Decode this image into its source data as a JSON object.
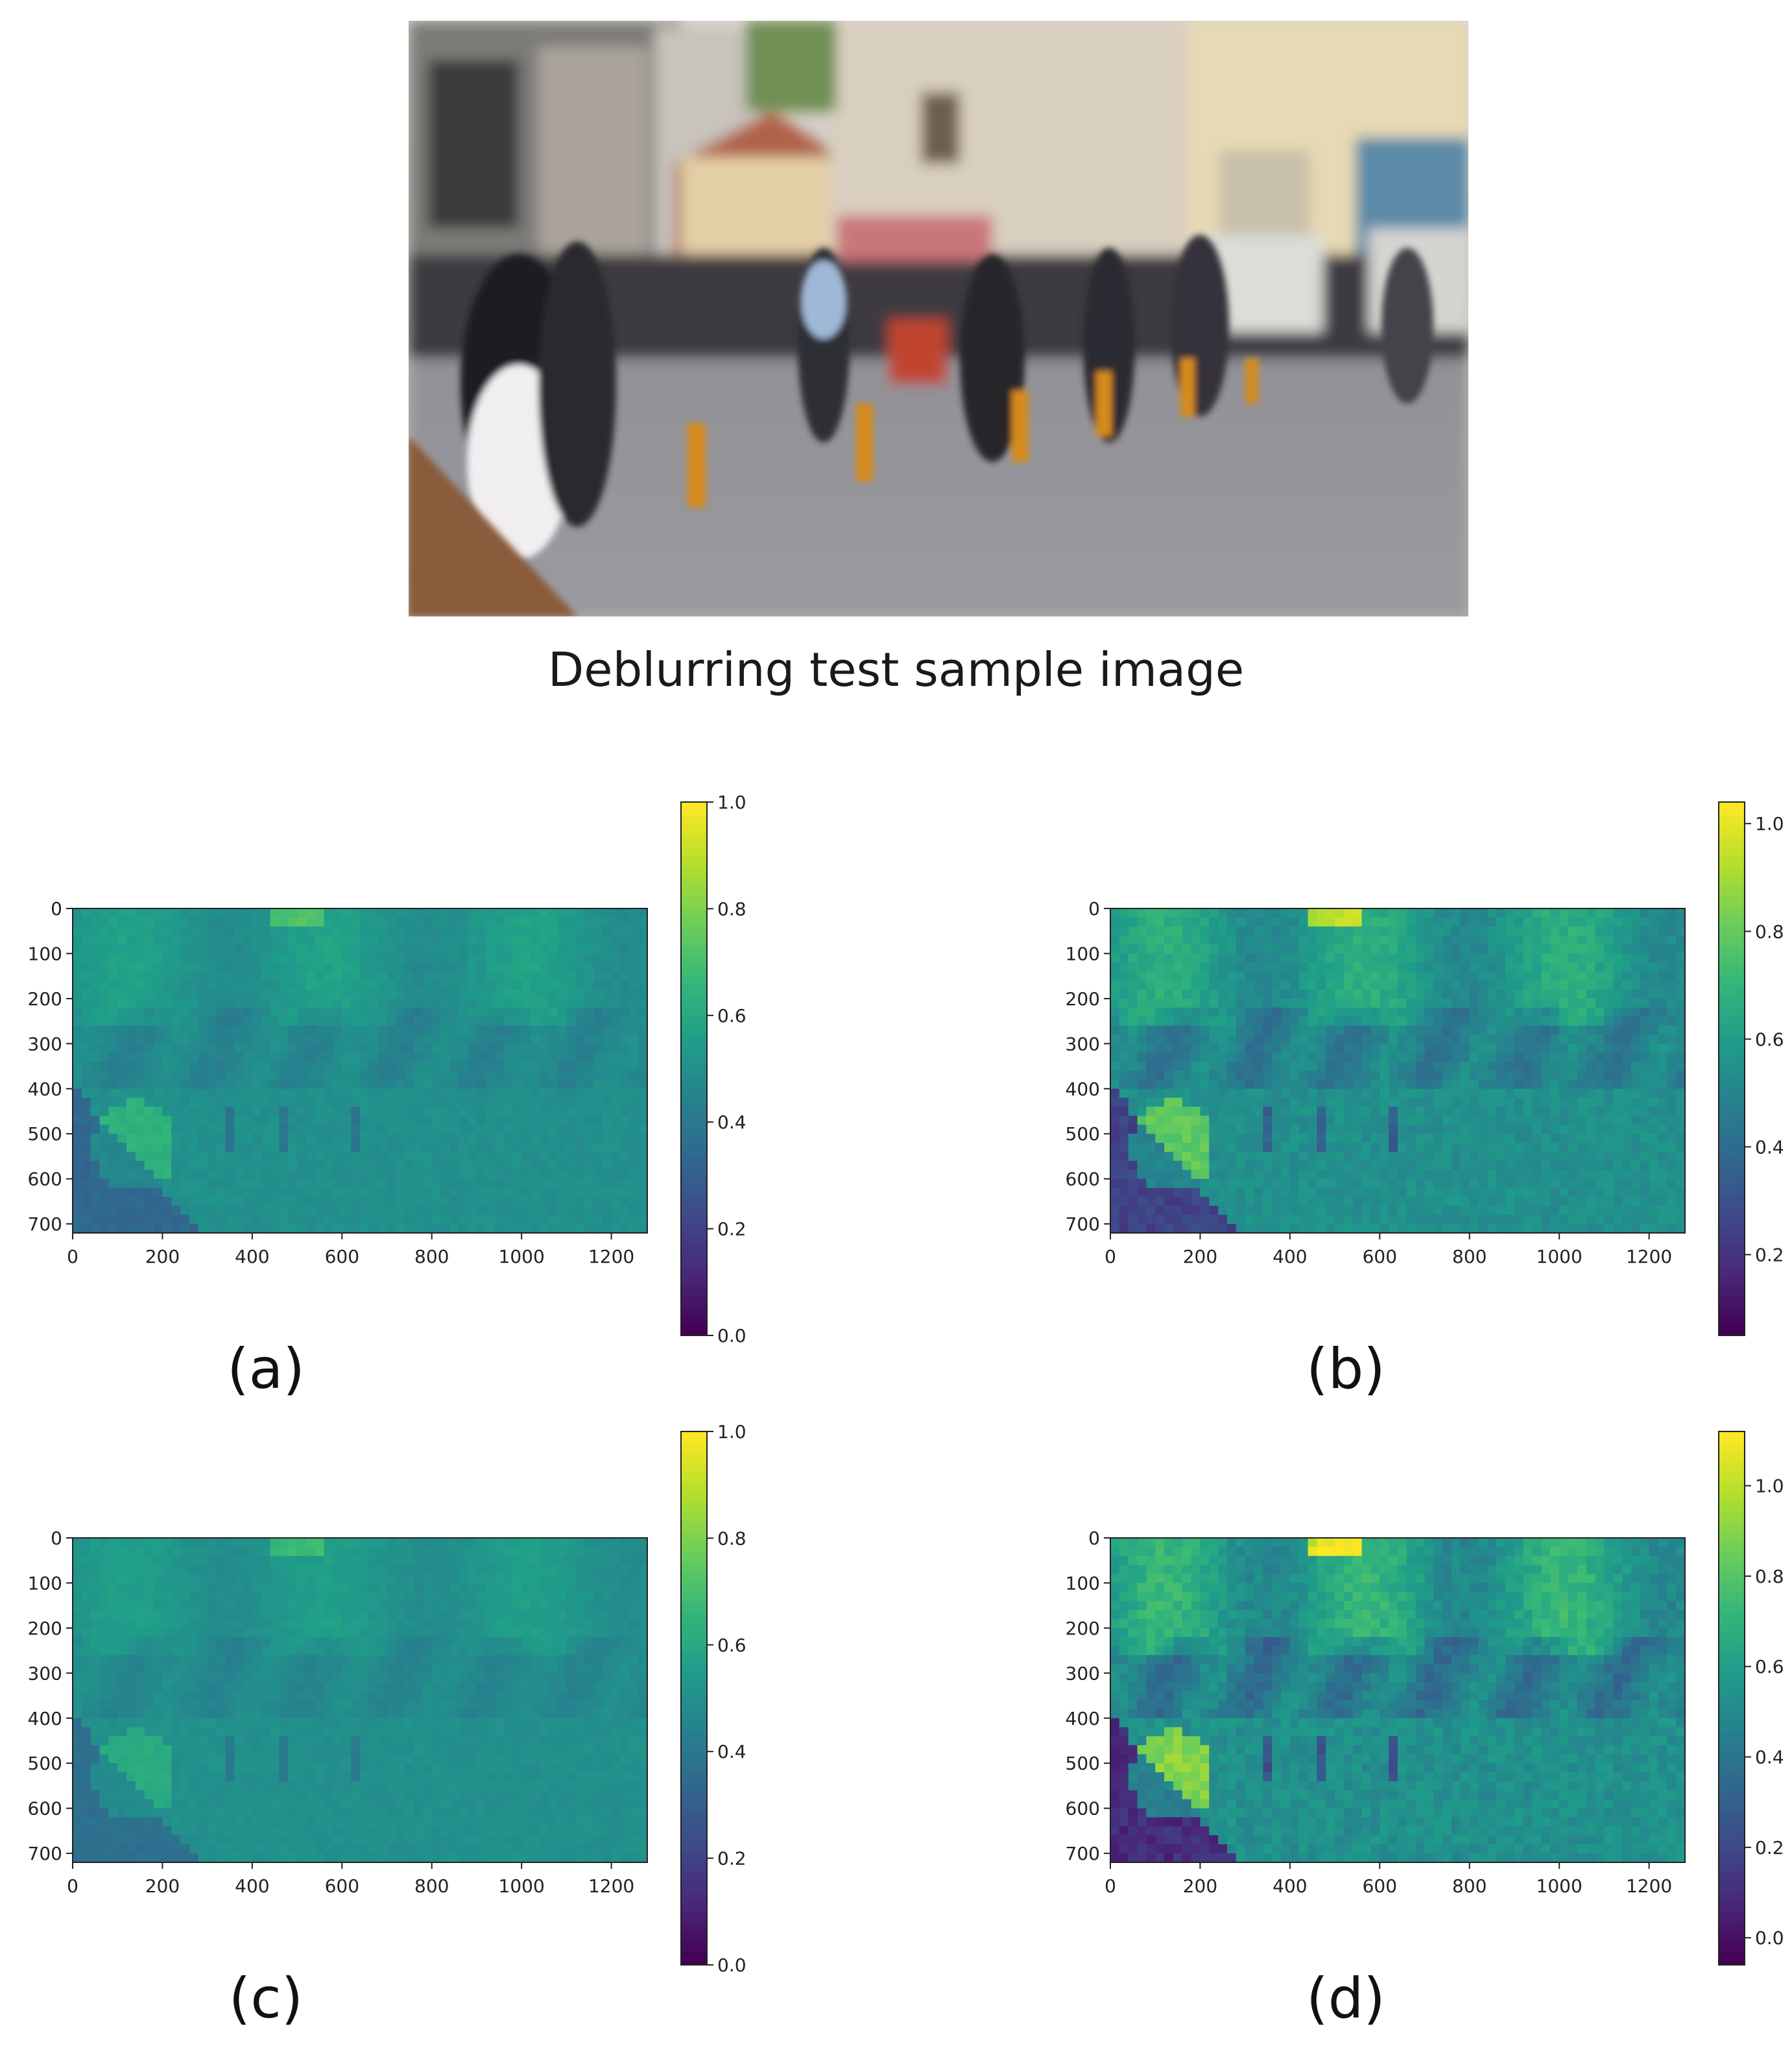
{
  "caption": "Deblurring test sample image",
  "colors": {
    "viridis_low": "#440154",
    "viridis_mid": "#21918c",
    "viridis_high": "#fde725"
  },
  "chart_data": [
    {
      "type": "heatmap",
      "panel_label": "(a)",
      "x_ticks": [
        0,
        200,
        400,
        600,
        800,
        1000,
        1200
      ],
      "y_ticks": [
        0,
        100,
        200,
        300,
        400,
        500,
        600,
        700
      ],
      "xlim": [
        0,
        1280
      ],
      "ylim": [
        720,
        0
      ],
      "colorbar": {
        "ticks": [
          "0.0",
          "0.2",
          "0.4",
          "0.6",
          "0.8",
          "1.0"
        ],
        "vmin": 0.0,
        "vmax": 1.0
      },
      "colormap": "viridis"
    },
    {
      "type": "heatmap",
      "panel_label": "(b)",
      "x_ticks": [
        0,
        200,
        400,
        600,
        800,
        1000,
        1200
      ],
      "y_ticks": [
        0,
        100,
        200,
        300,
        400,
        500,
        600,
        700
      ],
      "xlim": [
        0,
        1280
      ],
      "ylim": [
        720,
        0
      ],
      "colorbar": {
        "ticks": [
          "0.2",
          "0.4",
          "0.6",
          "0.8",
          "1.0"
        ],
        "vmin": 0.05,
        "vmax": 1.04
      },
      "colormap": "viridis"
    },
    {
      "type": "heatmap",
      "panel_label": "(c)",
      "x_ticks": [
        0,
        200,
        400,
        600,
        800,
        1000,
        1200
      ],
      "y_ticks": [
        0,
        100,
        200,
        300,
        400,
        500,
        600,
        700
      ],
      "xlim": [
        0,
        1280
      ],
      "ylim": [
        720,
        0
      ],
      "colorbar": {
        "ticks": [
          "0.0",
          "0.2",
          "0.4",
          "0.6",
          "0.8",
          "1.0"
        ],
        "vmin": 0.0,
        "vmax": 1.0
      },
      "colormap": "viridis"
    },
    {
      "type": "heatmap",
      "panel_label": "(d)",
      "x_ticks": [
        0,
        200,
        400,
        600,
        800,
        1000,
        1200
      ],
      "y_ticks": [
        0,
        100,
        200,
        300,
        400,
        500,
        600,
        700
      ],
      "xlim": [
        0,
        1280
      ],
      "ylim": [
        720,
        0
      ],
      "colorbar": {
        "ticks": [
          "0.0",
          "0.2",
          "0.4",
          "0.6",
          "0.8",
          "1.0"
        ],
        "vmin": -0.06,
        "vmax": 1.12
      },
      "colormap": "viridis"
    }
  ]
}
